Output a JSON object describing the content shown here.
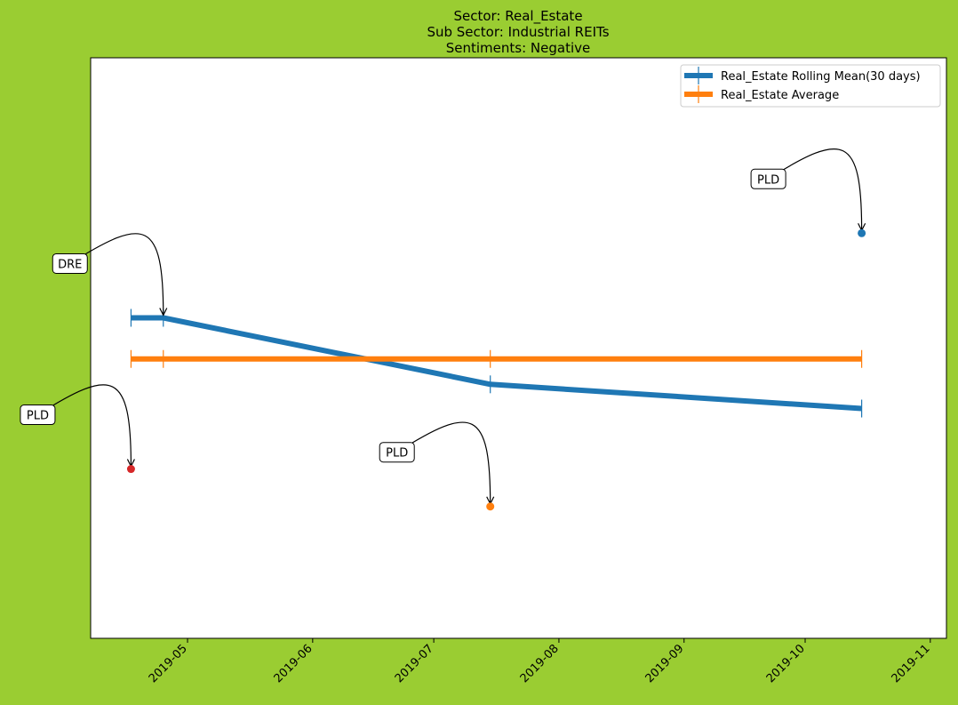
{
  "chart_data": {
    "type": "line",
    "title_lines": [
      "Sector:  Real_Estate",
      "Sub Sector:  Industrial REITs",
      "Sentiments:  Negative"
    ],
    "xlabel": "",
    "ylabel": "",
    "x_tick_labels": [
      "2019-05",
      "2019-06",
      "2019-07",
      "2019-08",
      "2019-09",
      "2019-10",
      "2019-11"
    ],
    "x_ticks": [
      "2019-05-01",
      "2019-06-01",
      "2019-07-01",
      "2019-08-01",
      "2019-09-01",
      "2019-10-01",
      "2019-11-01"
    ],
    "xlim": [
      "2019-04-07",
      "2019-11-05"
    ],
    "ylim": [
      -0.335,
      0.145
    ],
    "y_axis_ticks_visible": false,
    "grid": false,
    "legend_position": "top-right",
    "series": [
      {
        "name": "Real_Estate Rolling Mean(30 days)",
        "color": "#1f77b4",
        "marker": "vline",
        "points": [
          {
            "x": "2019-04-17",
            "y": -0.07
          },
          {
            "x": "2019-04-25",
            "y": -0.07
          },
          {
            "x": "2019-07-15",
            "y": -0.125
          },
          {
            "x": "2019-10-15",
            "y": -0.145
          }
        ]
      },
      {
        "name": "Real_Estate Average",
        "color": "#ff7f0e",
        "marker": "vline",
        "points": [
          {
            "x": "2019-04-17",
            "y": -0.104
          },
          {
            "x": "2019-04-25",
            "y": -0.104
          },
          {
            "x": "2019-07-15",
            "y": -0.104
          },
          {
            "x": "2019-10-15",
            "y": -0.104
          }
        ]
      }
    ],
    "annotated_points": [
      {
        "label": "PLD",
        "x": "2019-10-15",
        "y": 0.0,
        "color": "#1f77b4",
        "text_pos": "left-above"
      },
      {
        "label": "PLD",
        "x": "2019-04-17",
        "y": -0.195,
        "color": "#d62728",
        "text_pos": "left-above"
      },
      {
        "label": "PLD",
        "x": "2019-07-15",
        "y": -0.226,
        "color": "#ff7f0e",
        "text_pos": "left-above"
      },
      {
        "label": "DRE",
        "x": "2019-04-25",
        "y": -0.07,
        "color": null,
        "text_pos": "left-above"
      }
    ]
  }
}
